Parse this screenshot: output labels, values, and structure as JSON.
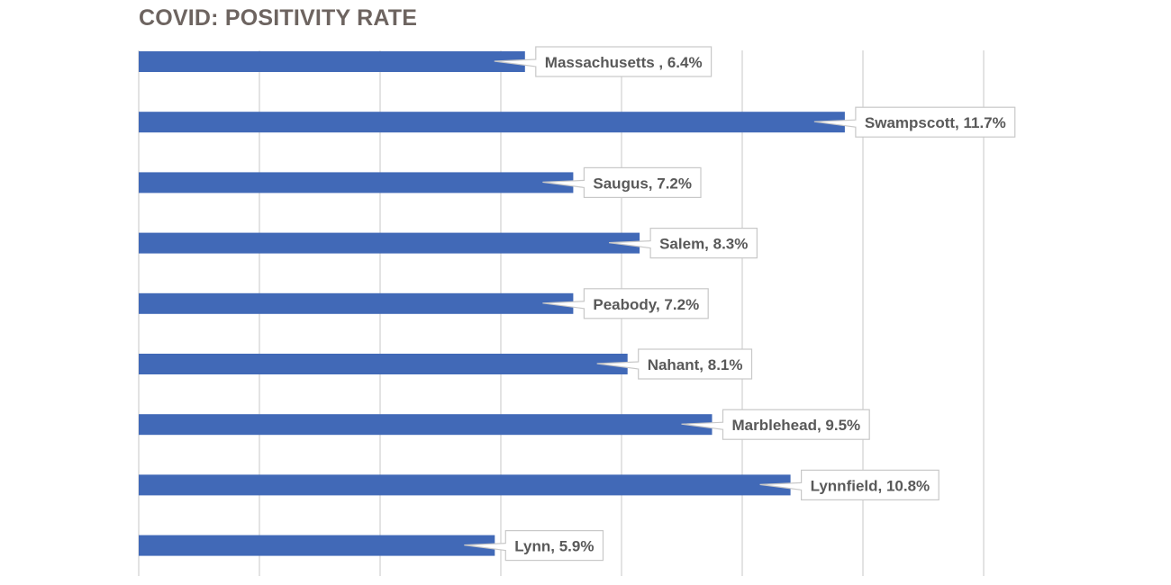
{
  "chart_data": {
    "type": "bar",
    "orientation": "horizontal",
    "title": "COVID: POSITIVITY RATE",
    "xlabel": "",
    "ylabel": "",
    "xlim": [
      0,
      14
    ],
    "grid": true,
    "legend": "none",
    "bar_color": "#4169b7",
    "grid_color": "#d0d0d0",
    "categories": [
      "Massachusetts",
      "Swampscott",
      "Saugus",
      "Salem",
      "Peabody",
      "Nahant",
      "Marblehead",
      "Lynnfield",
      "Lynn"
    ],
    "values": [
      6.4,
      11.7,
      7.2,
      8.3,
      7.2,
      8.1,
      9.5,
      10.8,
      5.9
    ],
    "data_labels": [
      "Massachusetts ,  6.4%",
      "Swampscott, 11.7%",
      "Saugus, 7.2%",
      "Salem, 8.3%",
      "Peabody, 7.2%",
      "Nahant, 8.1%",
      "Marblehead, 9.5%",
      "Lynnfield, 10.8%",
      "Lynn, 5.9%"
    ]
  }
}
